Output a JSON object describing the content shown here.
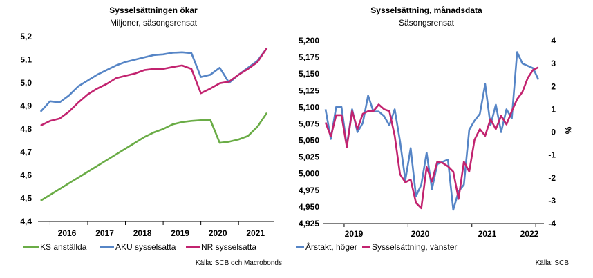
{
  "charts": [
    {
      "title": "Sysselsättningen ökar",
      "subtitle": "Miljoner, säsongsrensat",
      "source": "Källa: SCB och Macrobonds"
    },
    {
      "title": "Sysselsättning, månadsdata",
      "subtitle": "Säsongsrensat",
      "source": "Källa: SCB",
      "y2_label": "%"
    }
  ],
  "chart_data": [
    {
      "type": "line",
      "title": "Sysselsättningen ökar",
      "subtitle": "Miljoner, säsongsrensat",
      "x": [
        2015.75,
        2016.0,
        2016.25,
        2016.5,
        2016.75,
        2017.0,
        2017.25,
        2017.5,
        2017.75,
        2018.0,
        2018.25,
        2018.5,
        2018.75,
        2019.0,
        2019.25,
        2019.5,
        2019.75,
        2020.0,
        2020.25,
        2020.5,
        2020.75,
        2021.0,
        2021.25,
        2021.5,
        2021.75
      ],
      "x_ticks": [
        "2016",
        "2017",
        "2018",
        "2019",
        "2020",
        "2021"
      ],
      "ylim": [
        4.4,
        5.2
      ],
      "y_ticks": [
        "4,4",
        "4,5",
        "4,6",
        "4,7",
        "4,8",
        "4,9",
        "5,0",
        "5,1",
        "5,2"
      ],
      "grid": false,
      "legend": "bottom",
      "series": [
        {
          "name": "KS anställda",
          "color": "#6aac46",
          "values": [
            4.49,
            4.515,
            4.54,
            4.565,
            4.59,
            4.615,
            4.64,
            4.665,
            4.69,
            4.715,
            4.74,
            4.765,
            4.785,
            4.8,
            4.82,
            4.83,
            4.835,
            4.838,
            4.84,
            4.74,
            4.745,
            4.755,
            4.77,
            4.81,
            4.87
          ]
        },
        {
          "name": "AKU sysselsatta",
          "color": "#5685c6",
          "values": [
            4.875,
            4.92,
            4.915,
            4.945,
            4.985,
            5.01,
            5.035,
            5.055,
            5.075,
            5.09,
            5.1,
            5.11,
            5.12,
            5.123,
            5.13,
            5.132,
            5.128,
            5.025,
            5.035,
            5.065,
            5.0,
            5.035,
            5.065,
            5.095,
            5.15
          ]
        },
        {
          "name": "NR sysselsatta",
          "color": "#c2236f",
          "values": [
            4.815,
            4.835,
            4.845,
            4.875,
            4.915,
            4.95,
            4.975,
            4.995,
            5.02,
            5.03,
            5.04,
            5.055,
            5.06,
            5.06,
            5.068,
            5.075,
            5.06,
            4.955,
            4.975,
            4.998,
            5.005,
            5.035,
            5.06,
            5.09,
            5.15
          ]
        }
      ]
    },
    {
      "type": "line",
      "title": "Sysselsättning, månadsdata",
      "subtitle": "Säsongsrensat",
      "x_ticks": [
        "2019",
        "2020",
        "2021",
        "2022"
      ],
      "ylim": [
        4925,
        5200
      ],
      "y_ticks": [
        "4,925",
        "4,950",
        "4,975",
        "5,000",
        "5,025",
        "5,050",
        "5,075",
        "5,100",
        "5,125",
        "5,150",
        "5,175",
        "5,200"
      ],
      "y2lim": [
        -4,
        4
      ],
      "y2_ticks": [
        "-4",
        "-3",
        "-2",
        "-1",
        "0",
        "1",
        "2",
        "3",
        "4"
      ],
      "y2label": "%",
      "grid": false,
      "legend": "bottom",
      "series": [
        {
          "name": "Årstakt, höger",
          "color": "#5685c6",
          "axis": "right",
          "values": [
            1.0,
            -0.3,
            1.1,
            1.1,
            -0.6,
            1.0,
            0.0,
            0.4,
            1.6,
            0.9,
            0.9,
            0.7,
            0.3,
            1.0,
            -0.4,
            -2.1,
            -0.7,
            -2.8,
            -2.3,
            -0.9,
            -2.5,
            -1.4,
            -1.3,
            -1.2,
            -3.4,
            -2.6,
            -2.3,
            0.1,
            0.5,
            0.8,
            2.1,
            0.3,
            1.2,
            0.0,
            1.0,
            0.6,
            3.5,
            3.0,
            2.9,
            2.8,
            2.3
          ]
        },
        {
          "name": "Sysselsättning, vänster",
          "color": "#c2236f",
          "axis": "left",
          "values": [
            5077,
            5056,
            5088,
            5088,
            5040,
            5094,
            5067,
            5090,
            5094,
            5094,
            5104,
            5097,
            5094,
            5057,
            4999,
            4987,
            4991,
            4956,
            4948,
            5010,
            4988,
            5018,
            5016,
            5011,
            5003,
            4962,
            5018,
            5003,
            5051,
            5067,
            5057,
            5082,
            5067,
            5087,
            5074,
            5094,
            5112,
            5123,
            5144,
            5156,
            5160
          ]
        }
      ]
    }
  ],
  "legend": [
    {
      "label": "KS anställda",
      "color": "#6aac46"
    },
    {
      "label": "AKU sysselsatta",
      "color": "#5685c6"
    },
    {
      "label": "NR sysselsatta",
      "color": "#c2236f"
    },
    {
      "label": "Årstakt, höger",
      "color": "#5685c6"
    },
    {
      "label": "Sysselsättning, vänster",
      "color": "#c2236f"
    }
  ]
}
